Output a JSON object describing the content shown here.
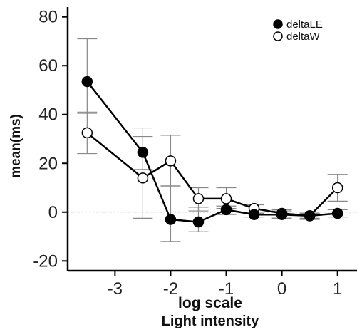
{
  "chart_data": {
    "type": "line",
    "xlabel": "log scale",
    "xlabel2": "Light intensity",
    "ylabel": "mean(ms)",
    "xlim": [
      -3.85,
      1.35
    ],
    "ylim": [
      -24,
      84
    ],
    "xticks": [
      -3,
      -2,
      -1,
      0,
      1
    ],
    "xtick_labels": [
      "-3",
      "-2",
      "-1",
      "0",
      "1"
    ],
    "yticks": [
      -20,
      0,
      20,
      40,
      60,
      80
    ],
    "ytick_labels": [
      "-20",
      "0",
      "20",
      "40",
      "60",
      "80"
    ],
    "reference_line_y": 0,
    "grid": false,
    "legend_position": "top-right",
    "series": [
      {
        "name": "deltaLE",
        "marker": "filled-circle",
        "color": "#000000",
        "x": [
          -3.5,
          -2.5,
          -2.0,
          -1.5,
          -1.0,
          -0.5,
          0.0,
          0.5,
          1.0
        ],
        "y": [
          53.5,
          24.5,
          -3.0,
          -4.0,
          1.0,
          -1.0,
          -1.0,
          -1.5,
          -0.5
        ],
        "err_low": [
          40.5,
          17.5,
          -12.0,
          -8.0,
          -1.0,
          -2.0,
          -2.5,
          -3.0,
          -2.0
        ],
        "err_high": [
          71.0,
          31.0,
          11.0,
          2.0,
          2.5,
          0.0,
          0.5,
          0.0,
          1.0
        ]
      },
      {
        "name": "deltaW",
        "marker": "open-circle",
        "color": "#ffffff",
        "x": [
          -3.5,
          -2.5,
          -2.0,
          -1.5,
          -1.0,
          -0.5,
          0.0,
          0.5,
          1.0
        ],
        "y": [
          32.5,
          14.0,
          21.0,
          5.5,
          5.5,
          1.5,
          -0.5,
          -1.5,
          10.0
        ],
        "err_low": [
          24.0,
          -2.5,
          10.5,
          0.5,
          1.5,
          -0.5,
          -2.0,
          -2.5,
          4.5
        ],
        "err_high": [
          41.0,
          34.5,
          31.5,
          10.0,
          10.0,
          3.0,
          1.0,
          -0.5,
          15.5
        ]
      }
    ]
  }
}
